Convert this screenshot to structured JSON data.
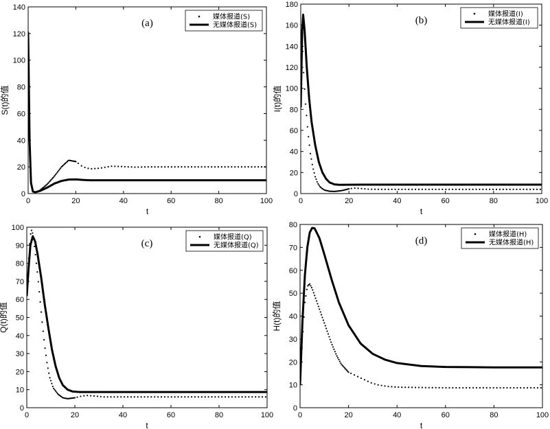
{
  "chart_data": [
    {
      "type": "line",
      "tag": "(a)",
      "xlabel": "t",
      "ylabel": "S(t)的值",
      "xlim": [
        0,
        100
      ],
      "ylim": [
        0,
        140
      ],
      "xticks": [
        0,
        20,
        40,
        60,
        80,
        100
      ],
      "yticks": [
        0,
        20,
        40,
        60,
        80,
        100,
        120,
        140
      ],
      "legend_position": "top-right",
      "series": [
        {
          "name": "媒体报道(S)",
          "style": "dotted",
          "points": [
            [
              0,
              121
            ],
            [
              0.6,
              40
            ],
            [
              1.2,
              8
            ],
            [
              2,
              1.5
            ],
            [
              3,
              1
            ],
            [
              5,
              2.5
            ],
            [
              8,
              7
            ],
            [
              11,
              13
            ],
            [
              14,
              20
            ],
            [
              17,
              25
            ],
            [
              20,
              24
            ],
            [
              23,
              20
            ],
            [
              26,
              18.5
            ],
            [
              30,
              19
            ],
            [
              35,
              20.5
            ],
            [
              40,
              20.2
            ],
            [
              45,
              19.8
            ],
            [
              50,
              20
            ],
            [
              60,
              20
            ],
            [
              70,
              20
            ],
            [
              80,
              20
            ],
            [
              90,
              20
            ],
            [
              100,
              20
            ]
          ]
        },
        {
          "name": "无媒体报道(S)",
          "style": "solid",
          "points": [
            [
              0,
              121
            ],
            [
              0.6,
              40
            ],
            [
              1.2,
              8
            ],
            [
              2,
              1.5
            ],
            [
              3,
              1
            ],
            [
              5,
              2
            ],
            [
              8,
              4.5
            ],
            [
              11,
              7.5
            ],
            [
              14,
              9.5
            ],
            [
              17,
              10.5
            ],
            [
              20,
              10.6
            ],
            [
              23,
              10.2
            ],
            [
              26,
              10
            ],
            [
              30,
              10
            ],
            [
              40,
              10
            ],
            [
              60,
              10
            ],
            [
              80,
              10
            ],
            [
              100,
              10
            ]
          ]
        }
      ]
    },
    {
      "type": "line",
      "tag": "(b)",
      "xlabel": "t",
      "ylabel": "I(t)的值",
      "xlim": [
        0,
        100
      ],
      "ylim": [
        0,
        180
      ],
      "xticks": [
        0,
        20,
        40,
        60,
        80,
        100
      ],
      "yticks": [
        0,
        20,
        40,
        60,
        80,
        100,
        120,
        140,
        160,
        180
      ],
      "legend_position": "top-right",
      "series": [
        {
          "name": "媒体报道(I)",
          "style": "dotted",
          "points": [
            [
              0,
              82
            ],
            [
              0.7,
              140
            ],
            [
              1.3,
              110
            ],
            [
              2,
              85
            ],
            [
              3,
              58
            ],
            [
              4,
              38
            ],
            [
              5,
              25
            ],
            [
              6,
              16
            ],
            [
              7,
              10
            ],
            [
              8,
              6.5
            ],
            [
              9,
              4.5
            ],
            [
              10,
              3.2
            ],
            [
              12,
              2.2
            ],
            [
              14,
              2
            ],
            [
              17,
              2.8
            ],
            [
              20,
              4.5
            ],
            [
              22,
              5.2
            ],
            [
              25,
              4.8
            ],
            [
              28,
              4.2
            ],
            [
              32,
              4
            ],
            [
              40,
              4
            ],
            [
              60,
              4
            ],
            [
              80,
              4
            ],
            [
              100,
              4
            ]
          ]
        },
        {
          "name": "无媒体报道(I)",
          "style": "solid",
          "points": [
            [
              0,
              82
            ],
            [
              0.6,
              155
            ],
            [
              1,
              170
            ],
            [
              1.6,
              155
            ],
            [
              2.5,
              120
            ],
            [
              3.5,
              90
            ],
            [
              4.5,
              68
            ],
            [
              6,
              46
            ],
            [
              7.5,
              30
            ],
            [
              9,
              20
            ],
            [
              10.5,
              14
            ],
            [
              12,
              10.5
            ],
            [
              14,
              8.7
            ],
            [
              16,
              8.3
            ],
            [
              20,
              8.4
            ],
            [
              25,
              8.5
            ],
            [
              30,
              8.5
            ],
            [
              40,
              8.5
            ],
            [
              60,
              8.5
            ],
            [
              80,
              8.5
            ],
            [
              100,
              8.5
            ]
          ]
        }
      ]
    },
    {
      "type": "line",
      "tag": "(c)",
      "xlabel": "t",
      "ylabel": "Q(t)的值",
      "xlim": [
        0,
        100
      ],
      "ylim": [
        0,
        100
      ],
      "xticks": [
        0,
        20,
        40,
        60,
        80,
        100
      ],
      "yticks": [
        0,
        10,
        20,
        30,
        40,
        50,
        60,
        70,
        80,
        90,
        100
      ],
      "legend_position": "top-right",
      "series": [
        {
          "name": "媒体报道(Q)",
          "style": "dotted",
          "points": [
            [
              0,
              62
            ],
            [
              1,
              88
            ],
            [
              1.8,
              99
            ],
            [
              2.6,
              96
            ],
            [
              3.5,
              86
            ],
            [
              4.5,
              74
            ],
            [
              5.5,
              60
            ],
            [
              6.5,
              46
            ],
            [
              7.5,
              34
            ],
            [
              8.5,
              24
            ],
            [
              9.5,
              17
            ],
            [
              11,
              11
            ],
            [
              13,
              7.5
            ],
            [
              15,
              5.5
            ],
            [
              17,
              5
            ],
            [
              20,
              5.5
            ],
            [
              23,
              6.5
            ],
            [
              25,
              6.8
            ],
            [
              28,
              6.5
            ],
            [
              32,
              6
            ],
            [
              40,
              6
            ],
            [
              60,
              6
            ],
            [
              80,
              6
            ],
            [
              100,
              6
            ]
          ]
        },
        {
          "name": "无媒体报道(Q)",
          "style": "solid",
          "points": [
            [
              0,
              62
            ],
            [
              0.8,
              78
            ],
            [
              1.5,
              90
            ],
            [
              2.5,
              95
            ],
            [
              3.5,
              92
            ],
            [
              4.5,
              85
            ],
            [
              6,
              72
            ],
            [
              7.5,
              57
            ],
            [
              9,
              44
            ],
            [
              10.5,
              32
            ],
            [
              12,
              23
            ],
            [
              13.5,
              16.5
            ],
            [
              15,
              12.5
            ],
            [
              17,
              10
            ],
            [
              19,
              9
            ],
            [
              22,
              8.7
            ],
            [
              25,
              8.7
            ],
            [
              30,
              8.7
            ],
            [
              40,
              8.7
            ],
            [
              60,
              8.7
            ],
            [
              80,
              8.7
            ],
            [
              100,
              8.7
            ]
          ]
        }
      ]
    },
    {
      "type": "line",
      "tag": "(d)",
      "xlabel": "t",
      "ylabel": "H(t)的值",
      "xlim": [
        0,
        100
      ],
      "ylim": [
        0,
        80
      ],
      "xticks": [
        0,
        20,
        40,
        60,
        80,
        100
      ],
      "yticks": [
        0,
        10,
        20,
        30,
        40,
        50,
        60,
        70,
        80
      ],
      "legend_position": "top-right",
      "series": [
        {
          "name": "媒体报道(H)",
          "style": "dotted",
          "points": [
            [
              0,
              10
            ],
            [
              1,
              30
            ],
            [
              2,
              46
            ],
            [
              3,
              53
            ],
            [
              4,
              54
            ],
            [
              5,
              52
            ],
            [
              7,
              46
            ],
            [
              9,
              40
            ],
            [
              11,
              34
            ],
            [
              13,
              28
            ],
            [
              15,
              23
            ],
            [
              17,
              19
            ],
            [
              20,
              15.5
            ],
            [
              23,
              14
            ],
            [
              26,
              12.5
            ],
            [
              29,
              11
            ],
            [
              32,
              10
            ],
            [
              36,
              9.3
            ],
            [
              40,
              9
            ],
            [
              50,
              8.8
            ],
            [
              60,
              8.7
            ],
            [
              80,
              8.7
            ],
            [
              100,
              8.7
            ]
          ]
        },
        {
          "name": "无媒体报道(H)",
          "style": "solid",
          "points": [
            [
              0,
              10
            ],
            [
              1,
              38
            ],
            [
              2,
              58
            ],
            [
              3,
              70
            ],
            [
              4,
              76.5
            ],
            [
              5,
              78.5
            ],
            [
              6,
              78.3
            ],
            [
              8,
              74
            ],
            [
              10,
              67
            ],
            [
              13,
              56
            ],
            [
              16,
              46
            ],
            [
              20,
              36
            ],
            [
              25,
              28
            ],
            [
              30,
              23.5
            ],
            [
              35,
              21
            ],
            [
              40,
              19.5
            ],
            [
              50,
              18.2
            ],
            [
              60,
              17.8
            ],
            [
              70,
              17.7
            ],
            [
              80,
              17.6
            ],
            [
              100,
              17.6
            ]
          ]
        }
      ]
    }
  ]
}
